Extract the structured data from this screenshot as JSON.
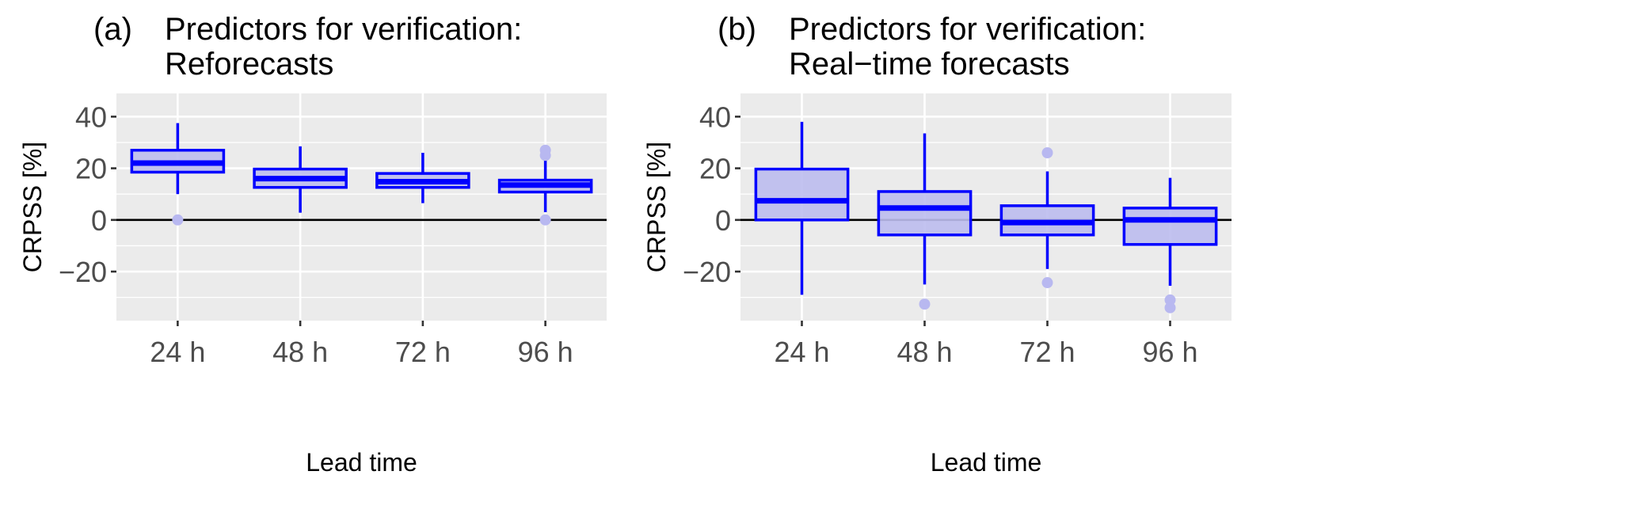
{
  "chart_data": [
    {
      "type": "box",
      "panel_label": "(a)",
      "title_lines": [
        "Predictors for verification:",
        "Reforecasts"
      ],
      "xlabel": "Lead time",
      "ylabel": "CRPSS [%]",
      "ylim": [
        -39,
        49
      ],
      "yticks": [
        40,
        20,
        0,
        -20
      ],
      "ytick_labels": [
        "40",
        "20",
        "0",
        "−20"
      ],
      "categories": [
        "24 h",
        "48 h",
        "72 h",
        "96 h"
      ],
      "reference_line": 0,
      "boxes": [
        {
          "low": 10,
          "q1": 18.5,
          "median": 22,
          "q3": 27,
          "high": 37.5,
          "outliers": [
            0
          ]
        },
        {
          "low": 2.8,
          "q1": 12.6,
          "median": 16,
          "q3": 19.7,
          "high": 28.5,
          "outliers": []
        },
        {
          "low": 6.5,
          "q1": 12.6,
          "median": 14.8,
          "q3": 18,
          "high": 26,
          "outliers": []
        },
        {
          "low": 3,
          "q1": 10.8,
          "median": 13.5,
          "q3": 15.4,
          "high": 24,
          "outliers": [
            27,
            25,
            0
          ]
        }
      ]
    },
    {
      "type": "box",
      "panel_label": "(b)",
      "title_lines": [
        "Predictors for verification:",
        "Real−time forecasts"
      ],
      "xlabel": "Lead time",
      "ylabel": "CRPSS [%]",
      "ylim": [
        -39,
        49
      ],
      "yticks": [
        40,
        20,
        0,
        -20
      ],
      "ytick_labels": [
        "40",
        "20",
        "0",
        "−20"
      ],
      "categories": [
        "24 h",
        "48 h",
        "72 h",
        "96 h"
      ],
      "reference_line": 0,
      "boxes": [
        {
          "low": -29,
          "q1": 0,
          "median": 7.4,
          "q3": 19.7,
          "high": 38,
          "outliers": []
        },
        {
          "low": -25,
          "q1": -5.8,
          "median": 4.6,
          "q3": 11,
          "high": 33.5,
          "outliers": [
            -32.6
          ]
        },
        {
          "low": -19,
          "q1": -5.8,
          "median": -1,
          "q3": 5.5,
          "high": 18.8,
          "outliers": [
            26,
            -24.3
          ]
        },
        {
          "low": -25.5,
          "q1": -9.5,
          "median": 0,
          "q3": 4.6,
          "high": 16.3,
          "outliers": [
            -31,
            -34
          ]
        }
      ]
    }
  ],
  "colors": {
    "box_line": "#0000ff",
    "box_fill": "#bcbcee",
    "outlier": "#b8b8f0",
    "panel_bg": "#ebebeb",
    "grid": "#ffffff"
  }
}
